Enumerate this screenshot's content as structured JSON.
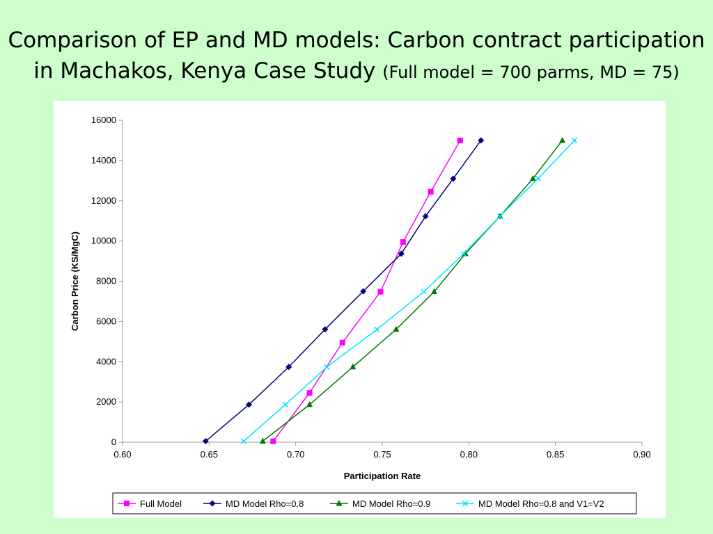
{
  "slide": {
    "title_line1": "Comparison of EP and MD models: Carbon contract participation",
    "title_line2": "in Machakos, Kenya Case Study",
    "title_sub": "(Full model = 700 parms, MD = 75)"
  },
  "chart_data": {
    "type": "line",
    "xlabel": "Participation Rate",
    "ylabel": "Carbon Price (KS/MgC)",
    "xlim": [
      0.6,
      0.9
    ],
    "ylim": [
      0,
      16000
    ],
    "x_ticks": [
      "0.60",
      "0.65",
      "0.70",
      "0.75",
      "0.80",
      "0.85",
      "0.90"
    ],
    "y_ticks": [
      "0",
      "2000",
      "4000",
      "6000",
      "8000",
      "10000",
      "12000",
      "14000",
      "16000"
    ],
    "grid": false,
    "legend_position": "bottom",
    "series": [
      {
        "name": "Full Model",
        "color": "#ff00ff",
        "marker": "square",
        "points": [
          [
            0.687,
            50
          ],
          [
            0.708,
            2450
          ],
          [
            0.727,
            4950
          ],
          [
            0.749,
            7480
          ],
          [
            0.762,
            9950
          ],
          [
            0.778,
            12450
          ],
          [
            0.795,
            15000
          ]
        ]
      },
      {
        "name": "MD Model Rho=0.8",
        "color": "#000080",
        "marker": "diamond",
        "points": [
          [
            0.648,
            50
          ],
          [
            0.673,
            1870
          ],
          [
            0.696,
            3740
          ],
          [
            0.717,
            5610
          ],
          [
            0.739,
            7500
          ],
          [
            0.761,
            9370
          ],
          [
            0.775,
            11230
          ],
          [
            0.791,
            13100
          ],
          [
            0.807,
            15000
          ]
        ]
      },
      {
        "name": "MD Model Rho=0.9",
        "color": "#007700",
        "marker": "triangle",
        "points": [
          [
            0.681,
            50
          ],
          [
            0.708,
            1870
          ],
          [
            0.733,
            3740
          ],
          [
            0.758,
            5610
          ],
          [
            0.78,
            7480
          ],
          [
            0.798,
            9370
          ],
          [
            0.818,
            11230
          ],
          [
            0.837,
            13100
          ],
          [
            0.854,
            15000
          ]
        ]
      },
      {
        "name": "MD Model Rho=0.8 and V1=V2",
        "color": "#00e5ff",
        "marker": "x",
        "points": [
          [
            0.67,
            50
          ],
          [
            0.694,
            1870
          ],
          [
            0.718,
            3740
          ],
          [
            0.747,
            5610
          ],
          [
            0.774,
            7480
          ],
          [
            0.797,
            9370
          ],
          [
            0.818,
            11230
          ],
          [
            0.84,
            13100
          ],
          [
            0.861,
            15000
          ]
        ]
      }
    ]
  }
}
